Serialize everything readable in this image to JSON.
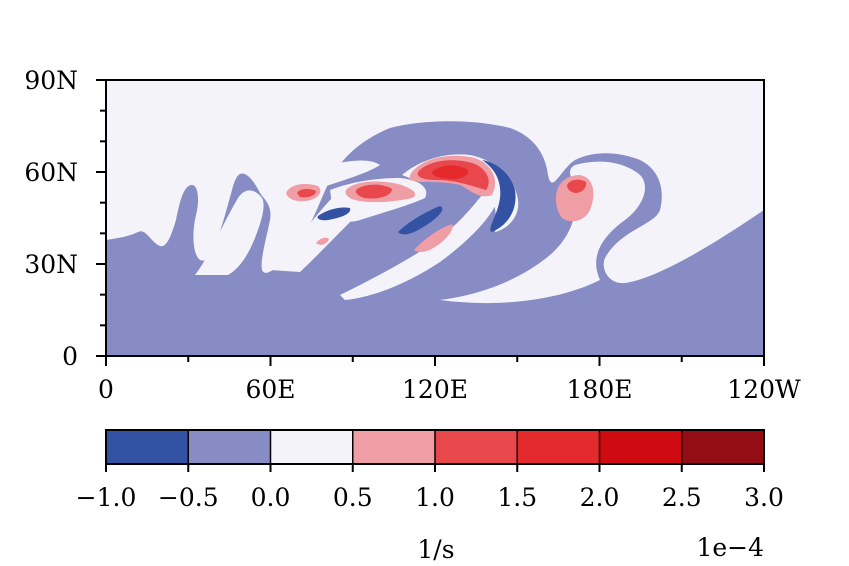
{
  "chart_data": {
    "type": "heatmap",
    "title": "",
    "xlabel": "",
    "ylabel": "",
    "xlim": [
      0,
      240
    ],
    "ylim": [
      0,
      90
    ],
    "xtick_labels": [
      "0",
      "60E",
      "120E",
      "180E",
      "120W"
    ],
    "ytick_labels": [
      "0",
      "30N",
      "60N",
      "90N"
    ],
    "colorbar": {
      "levels": [
        -1.0,
        -0.5,
        0.0,
        0.5,
        1.0,
        1.5,
        2.0,
        2.5,
        3.0
      ],
      "tick_labels": [
        "−1.0",
        "−0.5",
        "0.0",
        "0.5",
        "1.0",
        "1.5",
        "2.0",
        "2.5",
        "3.0"
      ],
      "colors": [
        "#3352a3",
        "#888cc4",
        "#f4f3f9",
        "#ef9ea6",
        "#e8474c",
        "#e52a2e",
        "#cf0a10",
        "#940c14"
      ],
      "label": "1/s",
      "offset_text": "1e−4"
    },
    "regions": [
      {
        "level": "-0.5 to 0.0",
        "description": "broad background band south of ~40N and wave arcs"
      },
      {
        "level": "0.0 to 0.5",
        "description": "high latitudes and troughs between wave arcs"
      },
      {
        "level": "0.5 to 1.5",
        "description": "positive cores near 55N at ~70E, ~100E, ~130E, ~175E"
      },
      {
        "level": "-1.0 to -0.5",
        "description": "negative cores near 45N-60N at ~85E, ~115E, ~145E"
      }
    ]
  }
}
